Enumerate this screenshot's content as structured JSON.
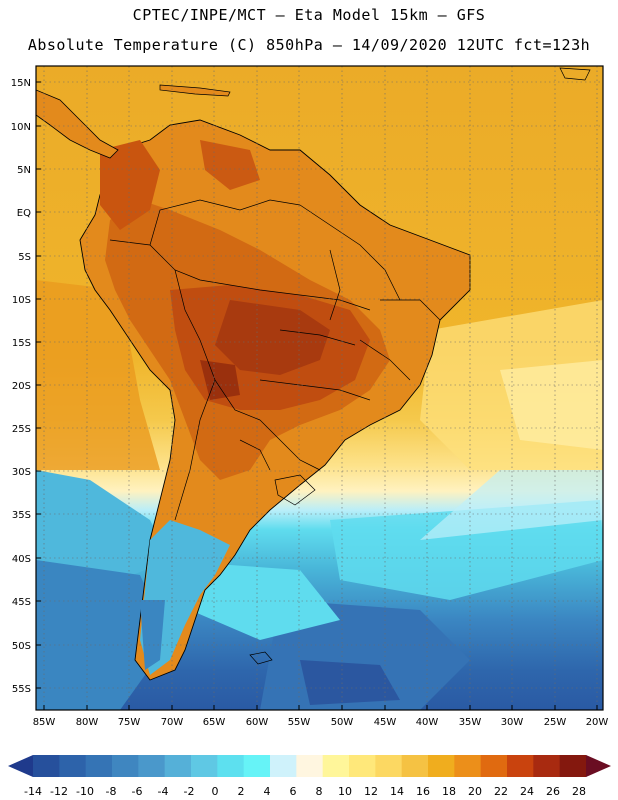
{
  "header": {
    "line1": "CPTEC/INPE/MCT –  Eta Model 15km – GFS",
    "line2": "Absolute Temperature (C) 850hPa – 14/09/2020 12UTC fct=123h"
  },
  "axes": {
    "lat_labels": [
      "15N",
      "10N",
      "5N",
      "EQ",
      "5S",
      "10S",
      "15S",
      "20S",
      "25S",
      "30S",
      "35S",
      "40S",
      "45S",
      "50S",
      "55S"
    ],
    "lon_labels": [
      "85W",
      "80W",
      "75W",
      "70W",
      "65W",
      "60W",
      "55W",
      "50W",
      "45W",
      "40W",
      "35W",
      "30W",
      "25W",
      "20W"
    ]
  },
  "colorbar": {
    "labels": [
      "-14",
      "-12",
      "-10",
      "-8",
      "-6",
      "-4",
      "-2",
      "0",
      "2",
      "4",
      "6",
      "8",
      "10",
      "12",
      "14",
      "16",
      "18",
      "20",
      "22",
      "24",
      "26",
      "28"
    ],
    "colors": [
      "#1f3a8c",
      "#26509c",
      "#2d63aa",
      "#3574b5",
      "#3f86c0",
      "#4a98cb",
      "#55b0d8",
      "#5fc8e4",
      "#5de0ef",
      "#66f3f7",
      "#cff2fb",
      "#fff6e0",
      "#fff69a",
      "#ffe87a",
      "#fcd862",
      "#f5c243",
      "#f0ad1e",
      "#ec8f1a",
      "#e06a10",
      "#c9430e",
      "#a82a10",
      "#84180e",
      "#6a0d22"
    ]
  },
  "colors": {
    "ocean_north": "#ecaa26",
    "ocean_south": "#2d63aa",
    "continent_hot": "#c25a13",
    "continent_core": "#a23d10"
  }
}
